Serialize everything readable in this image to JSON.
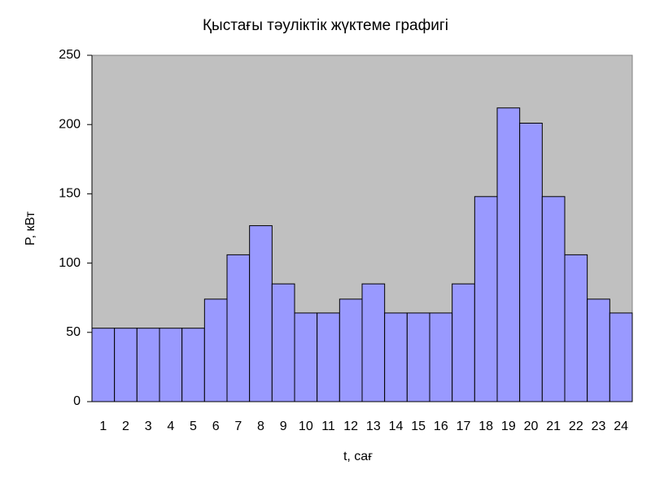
{
  "chart_data": {
    "type": "bar",
    "title": "Қыстағы тәуліктік жүктеме графигі",
    "x_label": "t, сағ",
    "y_label": "P, кВт",
    "categories": [
      "1",
      "2",
      "3",
      "4",
      "5",
      "6",
      "7",
      "8",
      "9",
      "10",
      "11",
      "12",
      "13",
      "14",
      "15",
      "16",
      "17",
      "18",
      "19",
      "20",
      "21",
      "22",
      "23",
      "24"
    ],
    "values": [
      53,
      53,
      53,
      53,
      53,
      74,
      106,
      127,
      85,
      64,
      64,
      74,
      85,
      64,
      64,
      64,
      85,
      148,
      212,
      201,
      148,
      106,
      74,
      64
    ],
    "color": "#9999ff",
    "background": "#c0c0c0",
    "ylim": [
      0,
      250
    ],
    "yticks": [
      0,
      50,
      100,
      150,
      200,
      250
    ],
    "grid": false
  }
}
